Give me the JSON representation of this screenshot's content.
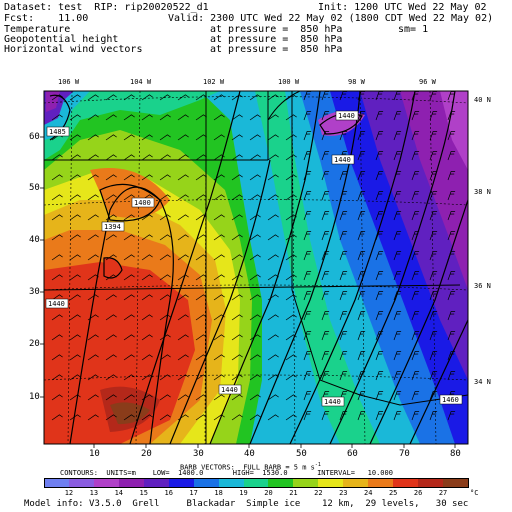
{
  "header": {
    "dataset_line": "Dataset: test  RIP: rip20020522_d1",
    "init_line": "Init: 1200 UTC Wed 22 May 02",
    "fcst_line": "Fcst:    11.00",
    "valid_line": "Valid: 2300 UTC Wed 22 May 02 (1800 CDT Wed 22 May 02)",
    "fields": [
      {
        "name": "Temperature",
        "level": "at pressure =  850 hPa",
        "extra": "sm= 1"
      },
      {
        "name": "Geopotential height",
        "level": "at pressure =  850 hPa",
        "extra": ""
      },
      {
        "name": "Horizontal wind vectors",
        "level": "at pressure =  850 hPa",
        "extra": ""
      }
    ]
  },
  "map": {
    "lon_labels": [
      "106 W",
      "104 W",
      "102 W",
      "100 W",
      "98 W",
      "96 W"
    ],
    "lat_labels": [
      "40 N",
      "38 N",
      "36 N",
      "34 N"
    ],
    "x_ticks": [
      "10",
      "20",
      "30",
      "40",
      "50",
      "60",
      "70",
      "80"
    ],
    "y_ticks": [
      "60",
      "50",
      "40",
      "30",
      "20",
      "10"
    ],
    "contour_labels": [
      "1485",
      "1440",
      "1440",
      "1400",
      "1394",
      "1440",
      "1440",
      "1440",
      "1460"
    ]
  },
  "footer": {
    "barb_line": "BARB VECTORS:  FULL BARB = 5 m s",
    "contours_line": "CONTOURS:  UNITS=m    LOW=  1400.0       HIGH=  1530.0       INTERVAL=   10.000",
    "colorbar_labels": [
      "12",
      "13",
      "14",
      "15",
      "16",
      "17",
      "18",
      "19",
      "20",
      "21",
      "22",
      "23",
      "24",
      "25",
      "26",
      "27"
    ],
    "colorbar_unit": "°C",
    "colors": [
      "#6f7ff0",
      "#8a5ce0",
      "#b040c8",
      "#8e20b0",
      "#6020c0",
      "#1a1ae6",
      "#1a72e6",
      "#1ab8d8",
      "#1ad28c",
      "#22c422",
      "#96d41a",
      "#e6e61a",
      "#e6b41a",
      "#ea7a1a",
      "#e0341a",
      "#b4281a",
      "#8a3c1a"
    ],
    "model_info": "Model info: V3.5.0  Grell     Blackadar  Simple ice    12 km,  29 levels,   30 sec"
  }
}
